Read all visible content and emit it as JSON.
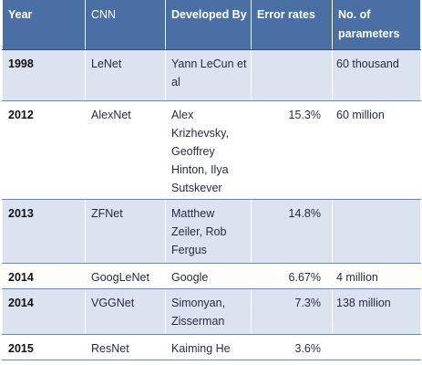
{
  "table": {
    "headers": [
      "Year",
      "CNN",
      "Developed By",
      "Error rates",
      "No. of parameters"
    ],
    "rows": [
      {
        "year": "1998",
        "cnn": "LeNet",
        "developer": "Yann LeCun et al",
        "error": "",
        "params": "60 thousand"
      },
      {
        "year": "2012",
        "cnn": "AlexNet",
        "developer": "Alex Krizhevsky, Geoffrey Hinton, Ilya Sutskever",
        "error": "15.3%",
        "params": "60 million"
      },
      {
        "year": "2013",
        "cnn": "ZFNet",
        "developer": "Matthew Zeiler, Rob Fergus",
        "error": "14.8%",
        "params": ""
      },
      {
        "year": "2014",
        "cnn": "GoogLeNet",
        "developer": "Google",
        "error": "6.67%",
        "params": "4 million"
      },
      {
        "year": "2014",
        "cnn": "VGGNet",
        "developer": "Simonyan, Zisserman",
        "error": "7.3%",
        "params": "138 million"
      },
      {
        "year": "2015",
        "cnn": "ResNet",
        "developer": "Kaiming He",
        "error": "3.6%",
        "params": ""
      }
    ]
  },
  "colors": {
    "header_bg": "#4a6fa5",
    "row_shade": "#dce3f0",
    "row_plain": "#ffffff",
    "rule": "#6f87b2"
  }
}
